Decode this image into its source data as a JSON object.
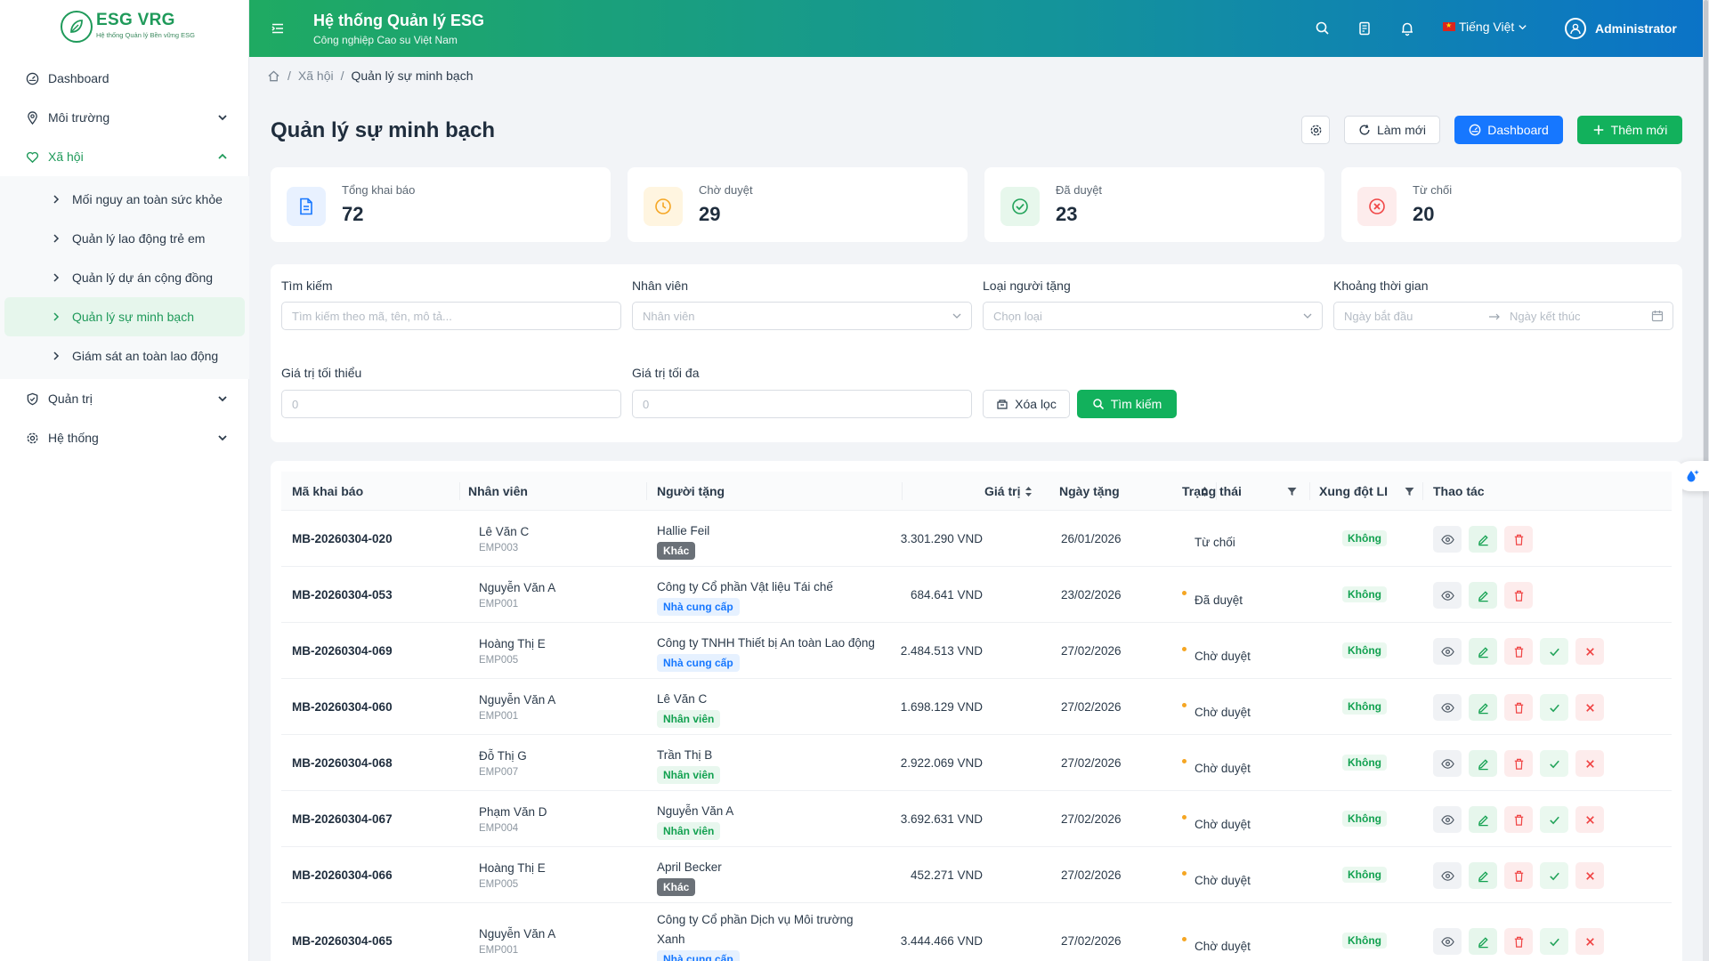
{
  "brand": {
    "title": "ESG VRG",
    "subtitle": "Hệ thống Quản lý Bền vững ESG"
  },
  "header": {
    "title": "Hệ thống Quản lý ESG",
    "subtitle": "Công nghiệp Cao su Việt Nam",
    "language": "Tiếng Việt",
    "user": "Administrator"
  },
  "sidebar": {
    "items": [
      {
        "label": "Dashboard",
        "icon": "dashboard-icon"
      },
      {
        "label": "Môi trường",
        "icon": "location-icon"
      },
      {
        "label": "Xã hội",
        "icon": "heart-icon"
      },
      {
        "label": "Quản trị",
        "icon": "shield-icon"
      },
      {
        "label": "Hệ thống",
        "icon": "gear-icon"
      }
    ],
    "sub_items": [
      {
        "label": "Mối nguy an toàn sức khỏe"
      },
      {
        "label": "Quản lý lao động trẻ em"
      },
      {
        "label": "Quản lý dự án cộng đồng"
      },
      {
        "label": "Quản lý sự minh bạch"
      },
      {
        "label": "Giám sát an toàn lao động"
      }
    ]
  },
  "breadcrumb": {
    "parent": "Xã hội",
    "current": "Quản lý sự minh bạch"
  },
  "page": {
    "title": "Quản lý sự minh bạch",
    "refresh_label": "Làm mới",
    "dashboard_label": "Dashboard",
    "add_label": "Thêm mới"
  },
  "stats": [
    {
      "label": "Tổng khai báo",
      "value": "72"
    },
    {
      "label": "Chờ duyệt",
      "value": "29"
    },
    {
      "label": "Đã duyệt",
      "value": "23"
    },
    {
      "label": "Từ chối",
      "value": "20"
    }
  ],
  "filters": {
    "search_label": "Tìm kiếm",
    "search_placeholder": "Tìm kiếm theo mã, tên, mô tả...",
    "employee_label": "Nhân viên",
    "employee_placeholder": "Nhân viên",
    "giver_type_label": "Loại người tặng",
    "giver_type_placeholder": "Chọn loại",
    "period_label": "Khoảng thời gian",
    "start_placeholder": "Ngày bắt đầu",
    "end_placeholder": "Ngày kết thúc",
    "min_label": "Giá trị tối thiểu",
    "min_placeholder": "0",
    "max_label": "Giá trị tối đa",
    "max_placeholder": "0",
    "clear_label": "Xóa lọc",
    "search_button": "Tìm kiếm"
  },
  "table": {
    "columns": [
      "Mã khai báo",
      "Nhân viên",
      "Người tặng",
      "Giá trị",
      "Ngày tặng",
      "Trạng thái",
      "Xung đột LI",
      "Thao tác"
    ],
    "rows": [
      {
        "code": "MB-20260304-020",
        "employee": "Lê Văn C",
        "emp_id": "EMP003",
        "giver": "Hallie Feil",
        "giver_type": "Khác",
        "value": "3.301.290 VND",
        "date": "26/01/2026",
        "status": "Từ chối",
        "conflict": "Không"
      },
      {
        "code": "MB-20260304-053",
        "employee": "Nguyễn Văn A",
        "emp_id": "EMP001",
        "giver": "Công ty Cổ phần Vật liệu Tái chế",
        "giver_type": "Nhà cung cấp",
        "value": "684.641 VND",
        "date": "23/02/2026",
        "status": "Đã duyệt",
        "conflict": "Không"
      },
      {
        "code": "MB-20260304-069",
        "employee": "Hoàng Thị E",
        "emp_id": "EMP005",
        "giver": "Công ty TNHH Thiết bị An toàn Lao động",
        "giver_type": "Nhà cung cấp",
        "value": "2.484.513 VND",
        "date": "27/02/2026",
        "status": "Chờ duyệt",
        "conflict": "Không"
      },
      {
        "code": "MB-20260304-060",
        "employee": "Nguyễn Văn A",
        "emp_id": "EMP001",
        "giver": "Lê Văn C",
        "giver_type": "Nhân viên",
        "value": "1.698.129 VND",
        "date": "27/02/2026",
        "status": "Chờ duyệt",
        "conflict": "Không"
      },
      {
        "code": "MB-20260304-068",
        "employee": "Đỗ Thị G",
        "emp_id": "EMP007",
        "giver": "Trần Thị B",
        "giver_type": "Nhân viên",
        "value": "2.922.069 VND",
        "date": "27/02/2026",
        "status": "Chờ duyệt",
        "conflict": "Không"
      },
      {
        "code": "MB-20260304-067",
        "employee": "Phạm Văn D",
        "emp_id": "EMP004",
        "giver": "Nguyễn Văn A",
        "giver_type": "Nhân viên",
        "value": "3.692.631 VND",
        "date": "27/02/2026",
        "status": "Chờ duyệt",
        "conflict": "Không"
      },
      {
        "code": "MB-20260304-066",
        "employee": "Hoàng Thị E",
        "emp_id": "EMP005",
        "giver": "April Becker",
        "giver_type": "Khác",
        "value": "452.271 VND",
        "date": "27/02/2026",
        "status": "Chờ duyệt",
        "conflict": "Không"
      },
      {
        "code": "MB-20260304-065",
        "employee": "Nguyễn Văn A",
        "emp_id": "EMP001",
        "giver": "Công ty Cổ phần Dịch vụ Môi trường Xanh",
        "giver_type": "Nhà cung cấp",
        "value": "3.444.466 VND",
        "date": "27/02/2026",
        "status": "Chờ duyệt",
        "conflict": "Không"
      }
    ]
  },
  "colors": {
    "primary": "#12b15c",
    "blue": "#1677ff",
    "danger": "#f04545",
    "warning": "#f5a623"
  }
}
